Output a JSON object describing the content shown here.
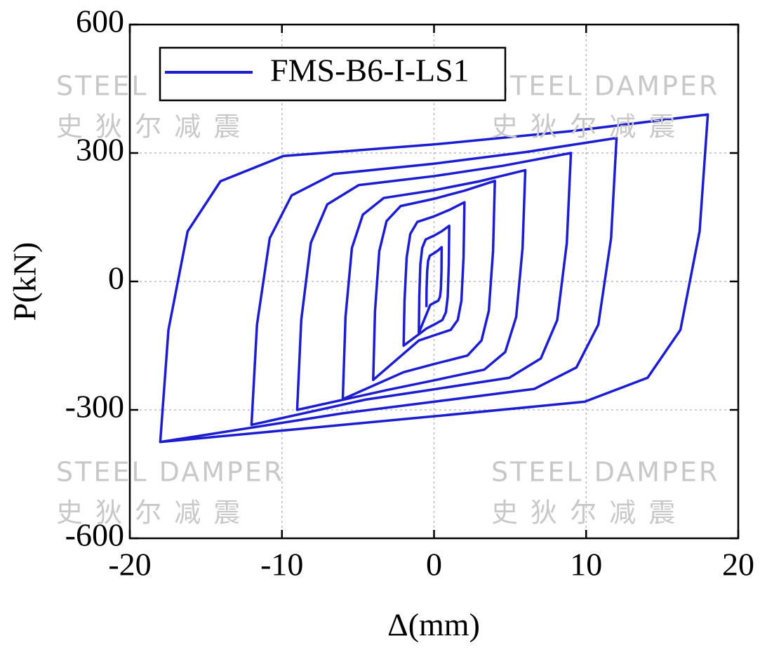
{
  "chart_data": {
    "type": "line",
    "xlabel": "Δ(mm)",
    "ylabel": "P(kN)",
    "xlim": [
      -20,
      20
    ],
    "ylim": [
      -600,
      600
    ],
    "xticks": [
      -20,
      -10,
      0,
      10,
      20
    ],
    "yticks": [
      -600,
      -300,
      0,
      300,
      600
    ],
    "grid": true,
    "legend": "upper left",
    "x": [
      -0.5,
      -0.49,
      -0.45,
      -0.39,
      -0.28,
      0,
      0.25,
      0.5,
      0.49,
      0.45,
      0.39,
      0.28,
      0,
      -0.25,
      -1,
      -0.97,
      -0.9,
      -0.78,
      -0.55,
      0,
      0.5,
      1,
      0.97,
      0.9,
      0.78,
      0.55,
      0,
      -0.5,
      -2,
      -1.94,
      -1.8,
      -1.56,
      -1.1,
      0,
      1,
      2,
      1.94,
      1.8,
      1.56,
      1.1,
      0,
      -1,
      -4,
      -3.88,
      -3.6,
      -3.12,
      -2.2,
      0,
      2,
      4,
      3.88,
      3.6,
      3.12,
      2.2,
      0,
      -2,
      -6,
      -5.82,
      -5.4,
      -4.68,
      -3.3,
      0,
      3,
      6,
      5.82,
      5.4,
      4.68,
      3.3,
      0,
      -3,
      -9,
      -8.73,
      -8.1,
      -7.02,
      -4.95,
      0,
      4.5,
      9,
      8.73,
      8.1,
      7.02,
      4.95,
      0,
      -4.5,
      -12,
      -11.64,
      -10.8,
      -9.36,
      -6.6,
      0,
      6,
      12,
      11.64,
      10.8,
      9.36,
      6.6,
      0,
      -6,
      -18,
      -17.46,
      -16.2,
      -14.04,
      -9.9,
      0,
      9,
      18,
      17.46,
      16.2,
      14.04,
      9.9,
      0,
      -9,
      -18
    ],
    "series": [
      {
        "name": "FMS-B6-I-LS1",
        "color": "#1c1cd0",
        "values": [
          -60,
          -18,
          24,
          48,
          60,
          66,
          72,
          80,
          24,
          -18,
          -36,
          -45,
          -50,
          -55,
          -120,
          -36,
          39,
          78,
          98,
          107,
          117,
          130,
          39,
          -36,
          -72,
          -90,
          -101,
          -110,
          -150,
          -45,
          56,
          111,
          139,
          152,
          167,
          185,
          56,
          -45,
          -90,
          -113,
          -126,
          -138,
          -230,
          -69,
          71,
          141,
          176,
          193,
          212,
          235,
          71,
          -69,
          -138,
          -173,
          -193,
          -212,
          -275,
          -83,
          78,
          156,
          195,
          213,
          234,
          260,
          78,
          -83,
          -165,
          -206,
          -231,
          -253,
          -300,
          -90,
          90,
          180,
          225,
          246,
          270,
          300,
          90,
          -90,
          -180,
          -225,
          -252,
          -276,
          -335,
          -101,
          101,
          201,
          251,
          275,
          302,
          335,
          101,
          -101,
          -201,
          -251,
          -281,
          -308,
          -375,
          -113,
          117,
          234,
          293,
          320,
          351,
          390,
          117,
          -113,
          -225,
          -281,
          -315,
          -345,
          -375
        ]
      }
    ],
    "annotations": [
      "STEEL DAMPER",
      "史 狄 尔 减 震",
      "STEEL DAMPER",
      "史 狄 尔 减 震",
      "STEEL DAMPER",
      "史 狄 尔 减 震",
      "STEEL DAMPER",
      "史 狄 尔 减 震"
    ]
  }
}
